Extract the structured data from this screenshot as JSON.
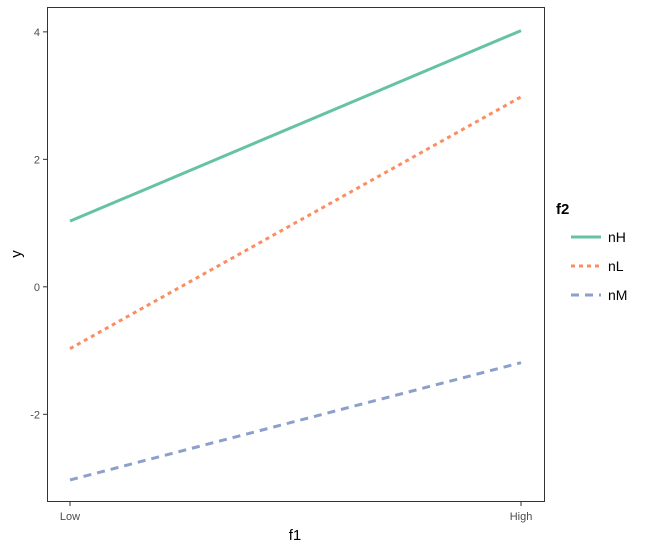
{
  "chart_data": {
    "type": "line",
    "title": "",
    "xlabel": "f1",
    "ylabel": "y",
    "categories": [
      "Low",
      "High"
    ],
    "ylim": [
      -3.36,
      4.39
    ],
    "yticks": [
      -2,
      0,
      2,
      4
    ],
    "ytick_labels": [
      "-2",
      "0",
      "2",
      "4"
    ],
    "grid": false,
    "legend": {
      "title": "f2",
      "placement": "right"
    },
    "series": [
      {
        "name": "nH",
        "values": [
          1.03,
          4.02
        ],
        "color": "#66c2a5",
        "dash": "solid"
      },
      {
        "name": "nL",
        "values": [
          -0.97,
          2.98
        ],
        "color": "#fc8d62",
        "dash": "dotted"
      },
      {
        "name": "nM",
        "values": [
          -3.03,
          -1.19
        ],
        "color": "#8da0cb",
        "dash": "dashed"
      }
    ]
  }
}
